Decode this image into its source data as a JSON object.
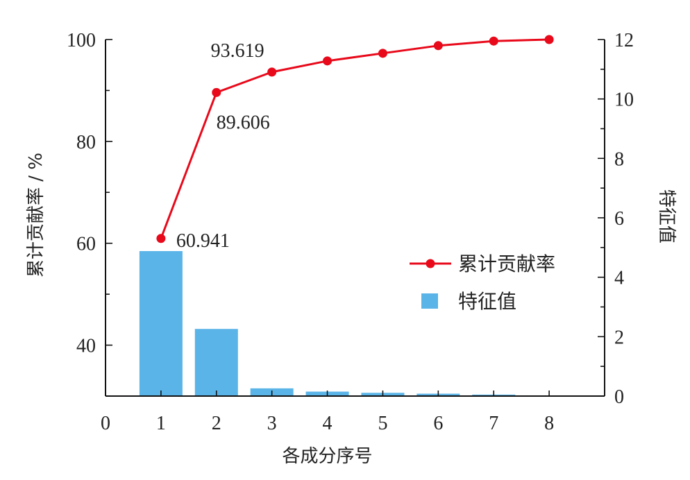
{
  "chart_data": {
    "type": "bar+line",
    "x": [
      1,
      2,
      3,
      4,
      5,
      6,
      7,
      8
    ],
    "xticks": [
      "0",
      "1",
      "2",
      "3",
      "4",
      "5",
      "6",
      "7",
      "8"
    ],
    "xlim": [
      0,
      9
    ],
    "xlabel": "各成分序号",
    "ylabel_left": "累计贡献率 / %",
    "ylabel_right": "特征值",
    "ylim_left": [
      30,
      100
    ],
    "yticks_left": [
      "40",
      "60",
      "80",
      "100"
    ],
    "ylim_right": [
      0,
      12
    ],
    "yticks_right": [
      "0",
      "2",
      "4",
      "6",
      "8",
      "10",
      "12"
    ],
    "series": [
      {
        "name": "累计贡献率",
        "type": "line",
        "axis": "left",
        "color": "#e8091a",
        "values": [
          60.941,
          89.606,
          93.619,
          95.8,
          97.3,
          98.8,
          99.7,
          100.0
        ]
      },
      {
        "name": "特征值",
        "type": "bar",
        "axis": "right",
        "color": "#5ab4e8",
        "values": [
          4.88,
          2.26,
          0.26,
          0.15,
          0.11,
          0.08,
          0.05,
          0.01
        ]
      }
    ],
    "annotations": [
      {
        "text": "60.941",
        "x": 1,
        "y": 60.941
      },
      {
        "text": "89.606",
        "x": 2,
        "y": 89.606
      },
      {
        "text": "93.619",
        "x": 3,
        "y": 93.619
      }
    ],
    "legend": {
      "position": "center-right"
    },
    "grid": false
  }
}
